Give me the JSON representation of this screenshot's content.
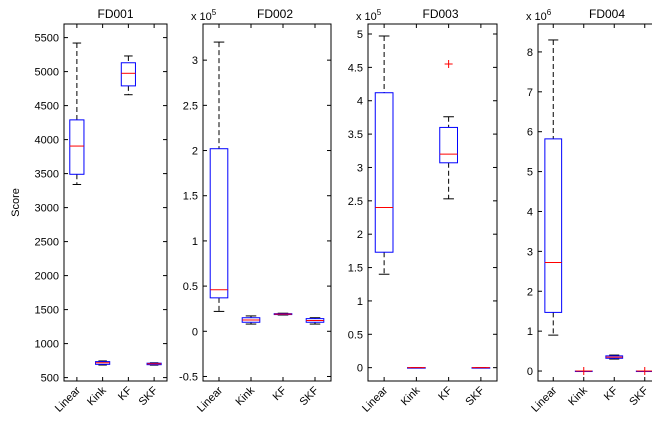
{
  "chart_data": [
    {
      "type": "box",
      "title": "FD001",
      "ylabel": "Score",
      "multiplier_label": "",
      "categories": [
        "Linear",
        "Kink",
        "KF",
        "SKF"
      ],
      "ylim": [
        450,
        5700
      ],
      "yticks": [
        500,
        1000,
        1500,
        2000,
        2500,
        3000,
        3500,
        4000,
        4500,
        5000,
        5500
      ],
      "ytick_labels": [
        "500",
        "1000",
        "1500",
        "2000",
        "2500",
        "3000",
        "3500",
        "4000",
        "4500",
        "5000",
        "5500"
      ],
      "boxes": [
        {
          "whisker_low": 3340,
          "q1": 3490,
          "median": 3905,
          "q3": 4290,
          "whisker_high": 5420,
          "outliers": []
        },
        {
          "whisker_low": 685,
          "q1": 695,
          "median": 718,
          "q3": 735,
          "whisker_high": 745,
          "outliers": []
        },
        {
          "whisker_low": 4660,
          "q1": 4790,
          "median": 4975,
          "q3": 5130,
          "whisker_high": 5230,
          "outliers": []
        },
        {
          "whisker_low": 683,
          "q1": 690,
          "median": 703,
          "q3": 712,
          "whisker_high": 718,
          "outliers": []
        }
      ]
    },
    {
      "type": "box",
      "title": "FD002",
      "ylabel": "",
      "multiplier_label": "x 10",
      "multiplier_exp": "5",
      "categories": [
        "Linear",
        "Kink",
        "KF",
        "SKF"
      ],
      "ylim": [
        -0.55,
        3.4
      ],
      "yticks": [
        -0.5,
        0,
        0.5,
        1,
        1.5,
        2,
        2.5,
        3
      ],
      "ytick_labels": [
        "-0.5",
        "0",
        "0.5",
        "1",
        "1.5",
        "2",
        "2.5",
        "3"
      ],
      "boxes": [
        {
          "whisker_low": 0.22,
          "q1": 0.37,
          "median": 0.46,
          "q3": 2.02,
          "whisker_high": 3.2,
          "outliers": []
        },
        {
          "whisker_low": 0.08,
          "q1": 0.1,
          "median": 0.125,
          "q3": 0.15,
          "whisker_high": 0.17,
          "outliers": []
        },
        {
          "whisker_low": 0.18,
          "q1": 0.185,
          "median": 0.19,
          "q3": 0.195,
          "whisker_high": 0.2,
          "outliers": []
        },
        {
          "whisker_low": 0.08,
          "q1": 0.1,
          "median": 0.12,
          "q3": 0.14,
          "whisker_high": 0.15,
          "outliers": []
        }
      ]
    },
    {
      "type": "box",
      "title": "FD003",
      "ylabel": "",
      "multiplier_label": "x 10",
      "multiplier_exp": "5",
      "categories": [
        "Linear",
        "Kink",
        "KF",
        "SKF"
      ],
      "ylim": [
        -0.2,
        5.15
      ],
      "yticks": [
        0,
        0.5,
        1,
        1.5,
        2,
        2.5,
        3,
        3.5,
        4,
        4.5,
        5
      ],
      "ytick_labels": [
        "0",
        "0.5",
        "1",
        "1.5",
        "2",
        "2.5",
        "3",
        "3.5",
        "4",
        "4.5",
        "5"
      ],
      "boxes": [
        {
          "whisker_low": 1.4,
          "q1": 1.73,
          "median": 2.4,
          "q3": 4.12,
          "whisker_high": 4.97,
          "outliers": []
        },
        {
          "whisker_low": 0,
          "q1": 0,
          "median": 0,
          "q3": 0,
          "whisker_high": 0,
          "outliers": []
        },
        {
          "whisker_low": 2.53,
          "q1": 3.07,
          "median": 3.2,
          "q3": 3.6,
          "whisker_high": 3.76,
          "outliers": [
            4.55
          ]
        },
        {
          "whisker_low": 0,
          "q1": 0,
          "median": 0,
          "q3": 0,
          "whisker_high": 0,
          "outliers": []
        }
      ]
    },
    {
      "type": "box",
      "title": "FD004",
      "ylabel": "",
      "multiplier_label": "x 10",
      "multiplier_exp": "6",
      "categories": [
        "Linear",
        "Kink",
        "KF",
        "SKF"
      ],
      "ylim": [
        -0.25,
        8.7
      ],
      "yticks": [
        0,
        1,
        2,
        3,
        4,
        5,
        6,
        7,
        8
      ],
      "ytick_labels": [
        "0",
        "1",
        "2",
        "3",
        "4",
        "5",
        "6",
        "7",
        "8"
      ],
      "boxes": [
        {
          "whisker_low": 0.9,
          "q1": 1.47,
          "median": 2.72,
          "q3": 5.82,
          "whisker_high": 8.3,
          "outliers": []
        },
        {
          "whisker_low": 0,
          "q1": 0,
          "median": 0,
          "q3": 0,
          "whisker_high": 0,
          "outliers": [
            0
          ]
        },
        {
          "whisker_low": 0.3,
          "q1": 0.32,
          "median": 0.35,
          "q3": 0.38,
          "whisker_high": 0.4,
          "outliers": []
        },
        {
          "whisker_low": 0,
          "q1": 0,
          "median": 0,
          "q3": 0,
          "whisker_high": 0,
          "outliers": [
            0
          ]
        }
      ]
    }
  ],
  "colors": {
    "box": "#0000ff",
    "median": "#ff0000",
    "whisker": "#000000",
    "outlier": "#ff0000",
    "axes": "#000000"
  }
}
